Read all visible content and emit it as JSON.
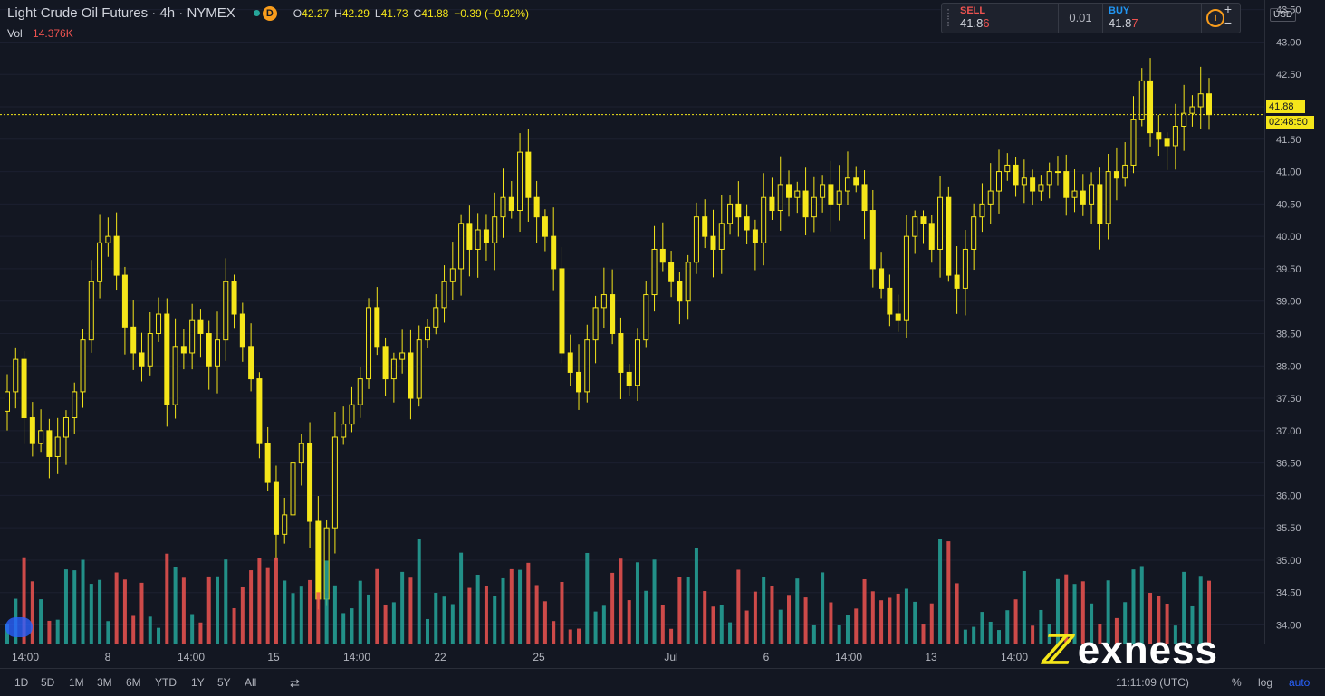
{
  "legend": {
    "symbol": "Light Crude Oil Futures",
    "interval": "4h",
    "exchange": "NYMEX",
    "status_badge": "D",
    "open_label": "O",
    "open": "42.27",
    "high_label": "H",
    "high": "42.29",
    "low_label": "L",
    "low": "41.73",
    "close_label": "C",
    "close": "41.88",
    "change": "−0.39 (−0.92%)"
  },
  "volume_legend": {
    "label": "Vol",
    "value": "14.376K"
  },
  "trade_panel": {
    "sell_label": "SELL",
    "sell_price_main": "41.8",
    "sell_price_last": "6",
    "quantity": "0.01",
    "buy_label": "BUY",
    "buy_price_main": "41.8",
    "buy_price_last": "7",
    "info_icon": "i"
  },
  "zoom": {
    "plus": "+",
    "minus": "−"
  },
  "price_axis": {
    "currency": "USD",
    "ticks": [
      "43.50",
      "43.00",
      "42.50",
      "42.00",
      "41.50",
      "41.00",
      "40.50",
      "40.00",
      "39.50",
      "39.00",
      "38.50",
      "38.00",
      "37.50",
      "37.00",
      "36.50",
      "36.00",
      "35.50",
      "35.00",
      "34.50",
      "34.00"
    ],
    "current_price": "41.88",
    "countdown": "02:48:50"
  },
  "time_axis": {
    "labels": [
      "14:00",
      "8",
      "14:00",
      "15",
      "14:00",
      "22",
      "25",
      "Jul",
      "6",
      "14:00",
      "13",
      "14:00"
    ]
  },
  "bottom_bar": {
    "ranges": [
      "1D",
      "5D",
      "1M",
      "3M",
      "6M",
      "YTD",
      "1Y",
      "5Y",
      "All"
    ],
    "compare_icon": "calendar-range-icon",
    "utc_time": "11:11:09 (UTC)",
    "percent": "%",
    "log": "log",
    "auto": "auto"
  },
  "logo": {
    "text": "exness"
  },
  "colors": {
    "up_candle": "#f5e61a",
    "down_candle": "#f5e61a",
    "vol_up": "#26a69a",
    "vol_down": "#ef5350",
    "background": "#131722",
    "accent": "#2962ff"
  },
  "chart_data": {
    "type": "candlestick",
    "ylim": [
      33.7,
      43.5
    ],
    "last_price": 41.88,
    "closes": [
      37.6,
      38.1,
      37.2,
      36.8,
      37.0,
      36.6,
      36.9,
      37.2,
      37.6,
      38.4,
      39.3,
      39.9,
      40.0,
      39.4,
      38.6,
      38.2,
      38.0,
      38.5,
      38.8,
      37.4,
      38.3,
      38.2,
      38.7,
      38.5,
      38.0,
      38.4,
      39.3,
      38.8,
      38.3,
      37.8,
      36.8,
      36.2,
      35.4,
      35.7,
      36.5,
      36.8,
      35.6,
      34.4,
      35.5,
      36.9,
      37.1,
      37.4,
      37.8,
      38.9,
      38.3,
      37.8,
      38.1,
      38.2,
      37.5,
      38.4,
      38.6,
      38.9,
      39.3,
      39.5,
      40.2,
      39.8,
      40.1,
      39.9,
      40.3,
      40.6,
      40.4,
      41.3,
      40.6,
      40.3,
      40.0,
      39.5,
      38.2,
      37.9,
      37.6,
      38.4,
      38.9,
      39.1,
      38.5,
      37.9,
      37.7,
      38.4,
      39.1,
      39.8,
      39.6,
      39.3,
      39.0,
      39.6,
      40.3,
      40.0,
      39.8,
      40.2,
      40.5,
      40.3,
      40.1,
      39.9,
      40.6,
      40.4,
      40.8,
      40.6,
      40.7,
      40.3,
      40.6,
      40.8,
      40.5,
      40.7,
      40.9,
      40.8,
      40.4,
      39.5,
      39.2,
      38.8,
      38.7,
      40.0,
      40.3,
      40.2,
      39.8,
      40.6,
      39.4,
      39.2,
      39.8,
      40.3,
      40.5,
      40.7,
      41.0,
      41.1,
      40.8,
      40.9,
      40.7,
      40.8,
      41.0,
      41.0,
      40.6,
      40.7,
      40.5,
      40.8,
      40.2,
      41.0,
      40.9,
      41.1,
      41.8,
      42.4,
      41.6,
      41.5,
      41.4,
      41.7,
      41.9,
      42.0,
      42.2,
      41.88
    ]
  }
}
